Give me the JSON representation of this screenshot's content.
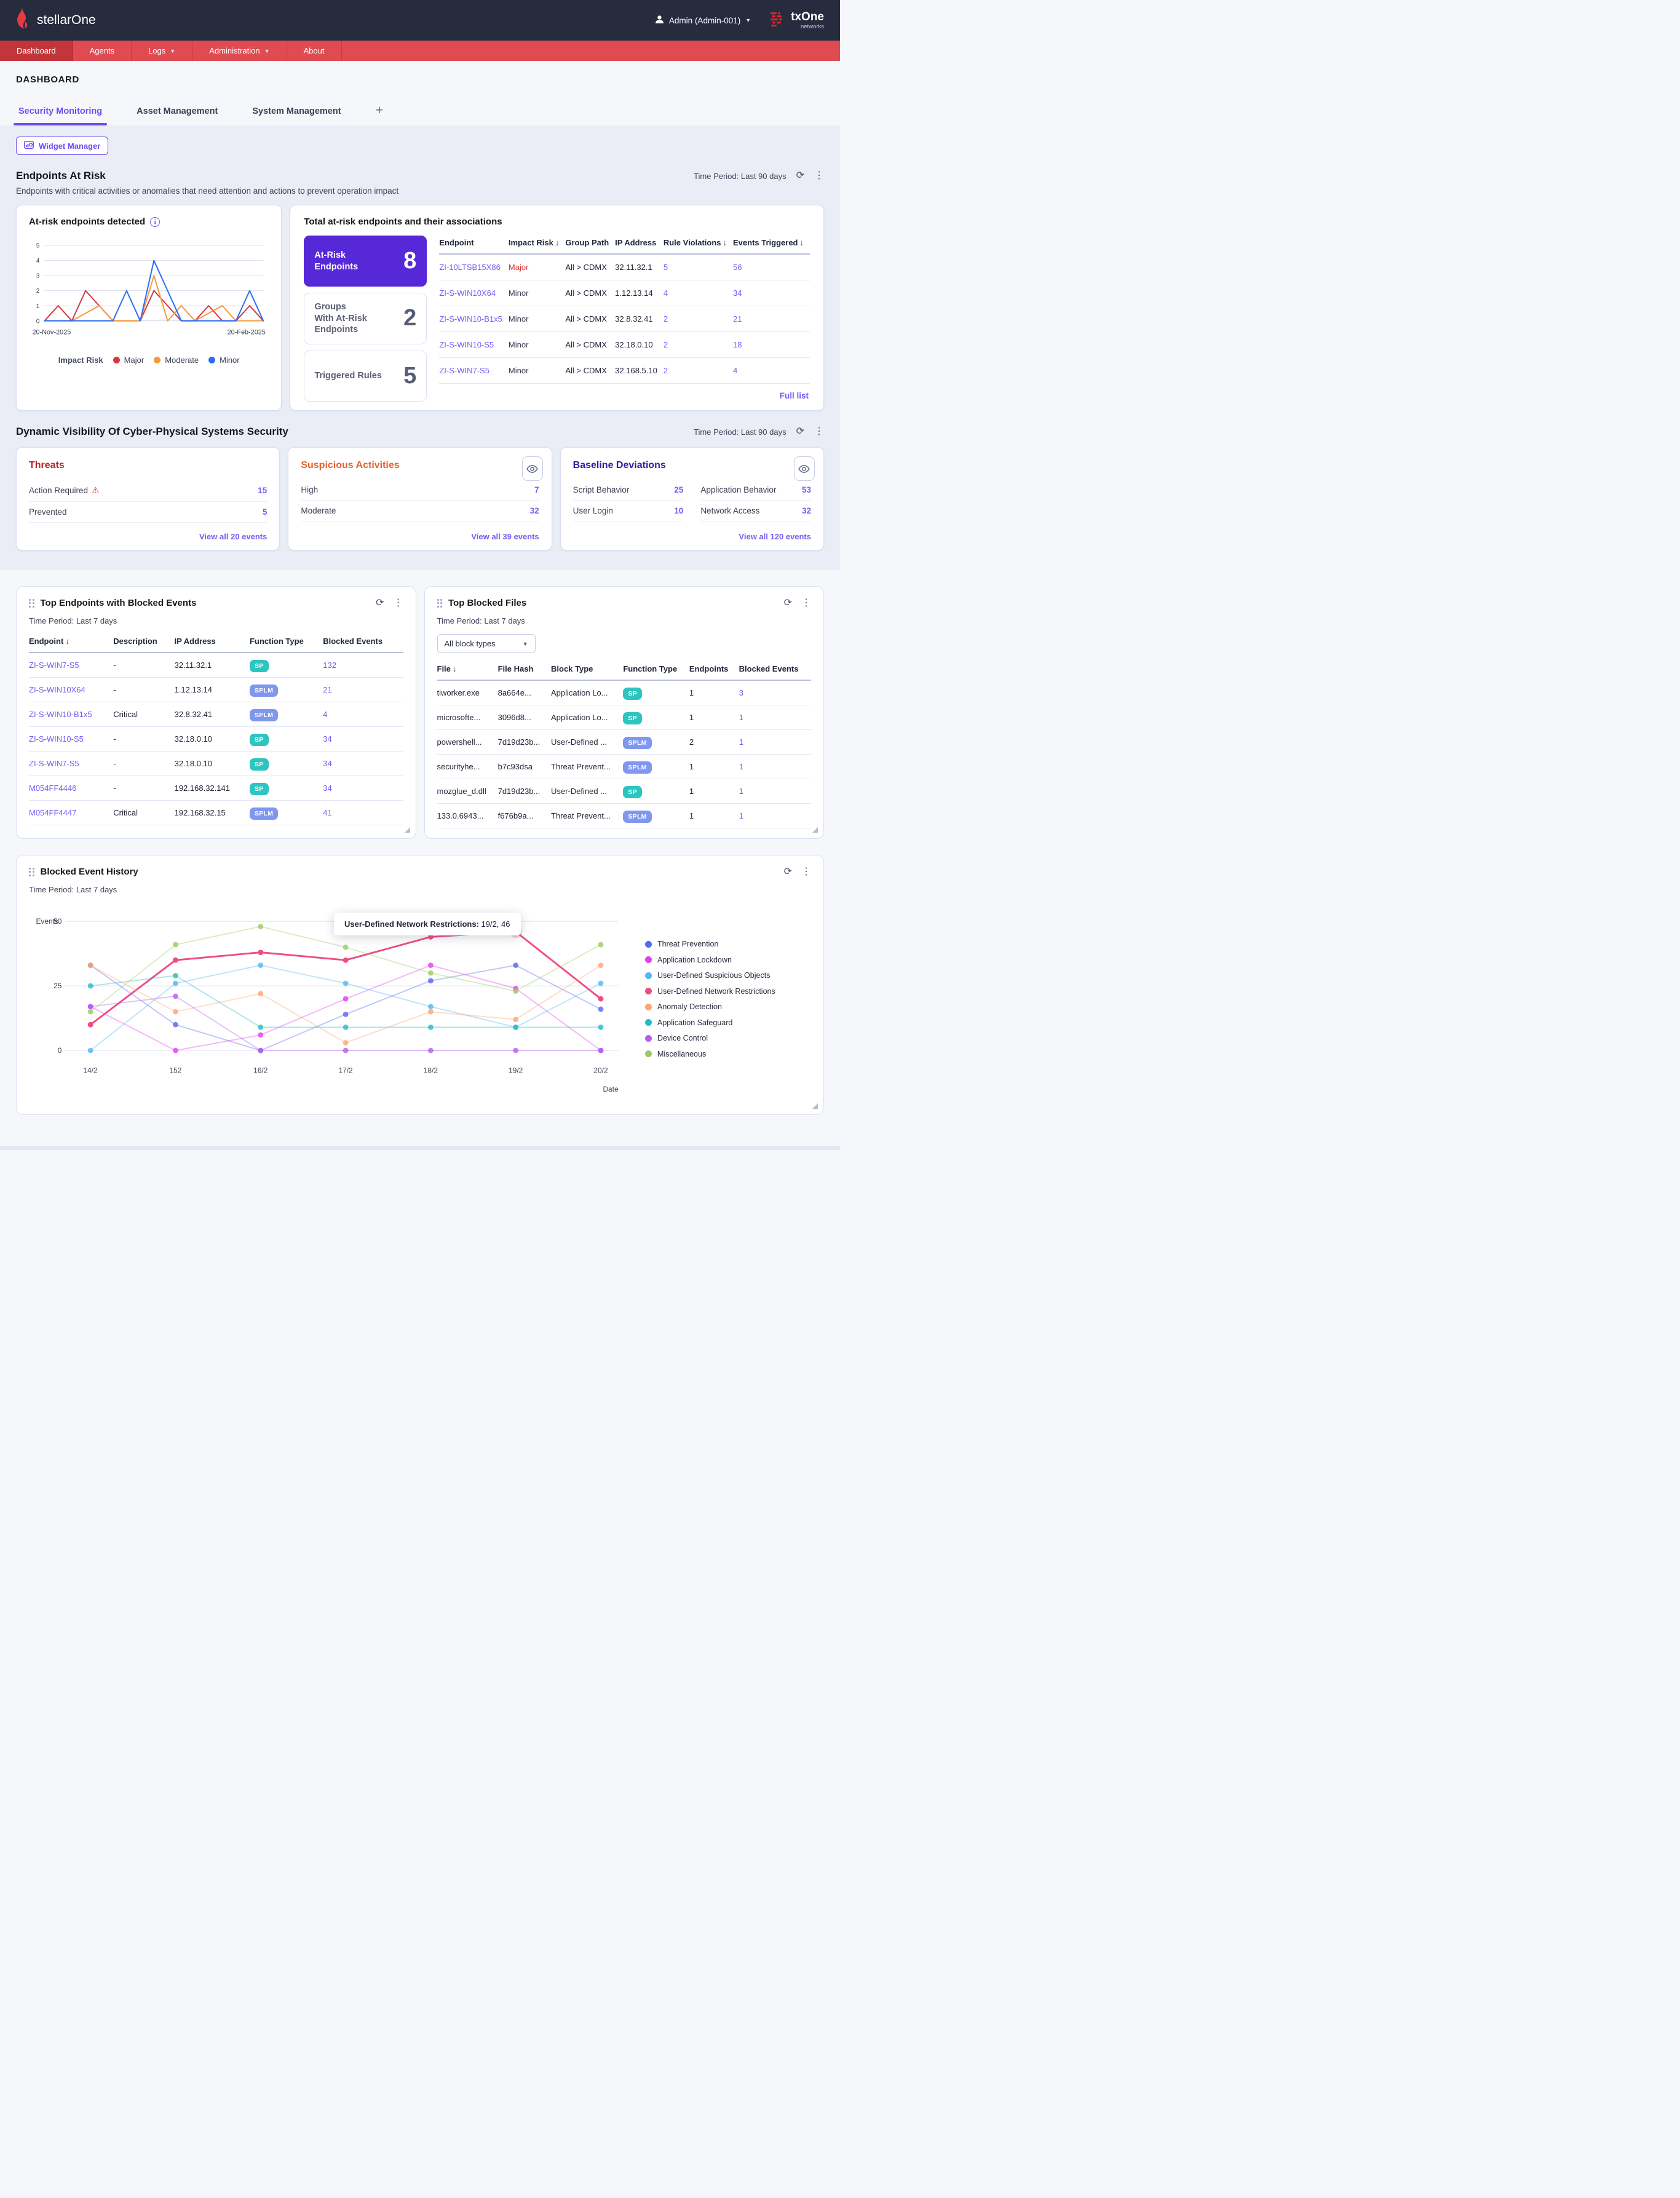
{
  "header": {
    "brand": "stellarOne",
    "user_label": "Admin (Admin-001)",
    "logo_title": "txOne",
    "logo_subtitle": "networks"
  },
  "nav": {
    "items": [
      {
        "label": "Dashboard",
        "active": true,
        "caret": false
      },
      {
        "label": "Agents",
        "active": false,
        "caret": false
      },
      {
        "label": "Logs",
        "active": false,
        "caret": true
      },
      {
        "label": "Administration",
        "active": false,
        "caret": true
      },
      {
        "label": "About",
        "active": false,
        "caret": false
      }
    ]
  },
  "page": {
    "title": "DASHBOARD",
    "tabs": [
      {
        "label": "Security Monitoring",
        "active": true
      },
      {
        "label": "Asset Management",
        "active": false
      },
      {
        "label": "System Management",
        "active": false
      }
    ],
    "add_tab_label": "+",
    "widget_manager_label": "Widget Manager"
  },
  "badge_colors": {
    "SP": "#2cc5c0",
    "SPLM": "#8097f0"
  },
  "sections": {
    "endpoints_at_risk": {
      "title": "Endpoints At Risk",
      "subtitle": "Endpoints with critical activities or anomalies that need attention and actions to prevent operation impact",
      "time_period": "Time Period: Last 90 days",
      "detected_card": {
        "title": "At-risk endpoints detected"
      },
      "associations_card": {
        "title": "Total at-risk endpoints and their associations",
        "stats": [
          {
            "label": "At-Risk\nEndpoints",
            "value": "8",
            "highlight": true
          },
          {
            "label": "Groups\nWith At-Risk\nEndpoints",
            "value": "2",
            "highlight": false
          },
          {
            "label": "Triggered Rules",
            "value": "5",
            "highlight": false
          }
        ],
        "table": {
          "columns": [
            "Endpoint",
            "Impact Risk",
            "Group Path",
            "IP Address",
            "Rule Violations",
            "Events Triggered"
          ],
          "sorted_columns": [
            1,
            4,
            5
          ],
          "rows": [
            [
              "ZI-10LTSB15X86",
              "Major",
              "All > CDMX",
              "32.11.32.1",
              "5",
              "56"
            ],
            [
              "ZI-S-WIN10X64",
              "Minor",
              "All > CDMX",
              "1.12.13.14",
              "4",
              "34"
            ],
            [
              "ZI-S-WIN10-B1x5",
              "Minor",
              "All > CDMX",
              "32.8.32.41",
              "2",
              "21"
            ],
            [
              "ZI-S-WIN10-S5",
              "Minor",
              "All > CDMX",
              "32.18.0.10",
              "2",
              "18"
            ],
            [
              "ZI-S-WIN7-S5",
              "Minor",
              "All > CDMX",
              "32.168.5.10",
              "2",
              "4"
            ]
          ]
        },
        "full_list_label": "Full list"
      }
    },
    "dynamic_visibility": {
      "title": "Dynamic Visibility Of Cyber-Physical Systems Security",
      "time_period": "Time Period: Last 90 days",
      "threats": {
        "title": "Threats",
        "rows": [
          {
            "label": "Action Required",
            "warning": true,
            "value": "15"
          },
          {
            "label": "Prevented",
            "warning": false,
            "value": "5"
          }
        ],
        "view_all": "View all 20 events"
      },
      "suspicious": {
        "title": "Suspicious Activities",
        "rows": [
          {
            "label": "High",
            "value": "7"
          },
          {
            "label": "Moderate",
            "value": "32"
          }
        ],
        "view_all": "View all 39 events"
      },
      "baseline": {
        "title": "Baseline Deviations",
        "rows": [
          {
            "label": "Script Behavior",
            "value": "25"
          },
          {
            "label": "Application Behavior",
            "value": "53"
          },
          {
            "label": "User Login",
            "value": "10"
          },
          {
            "label": "Network Access",
            "value": "32"
          }
        ],
        "view_all": "View all 120 events"
      }
    },
    "top_endpoints": {
      "title": "Top Endpoints with Blocked Events",
      "time_period": "Time Period: Last 7 days",
      "table": {
        "columns": [
          "Endpoint",
          "Description",
          "IP Address",
          "Function Type",
          "Blocked Events"
        ],
        "sorted_columns": [
          0
        ],
        "rows": [
          [
            "ZI-S-WIN7-S5",
            "-",
            "32.11.32.1",
            "SP",
            "132"
          ],
          [
            "ZI-S-WIN10X64",
            "-",
            "1.12.13.14",
            "SPLM",
            "21"
          ],
          [
            "ZI-S-WIN10-B1x5",
            "Critical",
            "32.8.32.41",
            "SPLM",
            "4"
          ],
          [
            "ZI-S-WIN10-S5",
            "-",
            "32.18.0.10",
            "SP",
            "34"
          ],
          [
            "ZI-S-WIN7-S5",
            "-",
            "32.18.0.10",
            "SP",
            "34"
          ],
          [
            "M054FF4446",
            "-",
            "192.168.32.141",
            "SP",
            "34"
          ],
          [
            "M054FF4447",
            "Critical",
            "192.168.32.15",
            "SPLM",
            "41"
          ]
        ]
      }
    },
    "top_blocked_files": {
      "title": "Top Blocked Files",
      "time_period": "Time Period: Last 7 days",
      "filter_value": "All block types",
      "table": {
        "columns": [
          "File",
          "File Hash",
          "Block Type",
          "Function Type",
          "Endpoints",
          "Blocked Events"
        ],
        "sorted_columns": [
          0
        ],
        "rows": [
          [
            "tiworker.exe",
            "8a664e...",
            "Application Lo...",
            "SP",
            "1",
            "3"
          ],
          [
            "microsofte...",
            "3096d8...",
            "Application Lo...",
            "SP",
            "1",
            "1"
          ],
          [
            "powershell...",
            "7d19d23b...",
            "User-Defined ...",
            "SPLM",
            "2",
            "1"
          ],
          [
            "securityhe...",
            "b7c93dsa",
            "Threat Prevent...",
            "SPLM",
            "1",
            "1"
          ],
          [
            "mozglue_d.dll",
            "7d19d23b...",
            "User-Defined ...",
            "SP",
            "1",
            "1"
          ],
          [
            "133.0.6943...",
            "f676b9a...",
            "Threat Prevent...",
            "SPLM",
            "1",
            "1"
          ]
        ]
      }
    },
    "blocked_event_history": {
      "title": "Blocked Event History",
      "time_period": "Time Period: Last 7 days",
      "tooltip": {
        "label": "User-Defined Network Restrictions:",
        "value": " 19/2, 46"
      }
    }
  },
  "chart_data": [
    {
      "id": "at_risk_endpoints_detected",
      "type": "line",
      "title": "At-risk endpoints detected",
      "xlabel": "",
      "ylabel": "",
      "x_start_label": "20-Nov-2025",
      "x_end_label": "20-Feb-2025",
      "ylim": [
        0,
        5
      ],
      "yticks": [
        0,
        1,
        2,
        3,
        4,
        5
      ],
      "grid": true,
      "legend_title": "Impact Risk",
      "legend_position": "bottom",
      "series": [
        {
          "name": "Major",
          "color": "#d7373f",
          "values": [
            0,
            1,
            0,
            2,
            1,
            0,
            0,
            0,
            2,
            1,
            0,
            0,
            1,
            0,
            0,
            1,
            0
          ]
        },
        {
          "name": "Moderate",
          "color": "#f59a3d",
          "values": [
            0,
            0,
            0,
            0.5,
            1,
            0,
            0,
            0,
            3,
            0,
            1,
            0,
            0.5,
            1,
            0,
            0,
            0
          ]
        },
        {
          "name": "Minor",
          "color": "#2a6df4",
          "values": [
            0,
            0,
            0,
            0,
            0,
            0,
            2,
            0,
            4,
            2,
            0,
            0,
            0,
            0,
            0,
            2,
            0
          ]
        }
      ]
    },
    {
      "id": "blocked_event_history",
      "type": "line",
      "title": "Blocked Event History",
      "xlabel": "Date",
      "ylabel": "Events",
      "categories": [
        "14/2",
        "152",
        "16/2",
        "17/2",
        "18/2",
        "19/2",
        "20/2"
      ],
      "ylim": [
        0,
        50
      ],
      "yticks": [
        0,
        25,
        50
      ],
      "grid": true,
      "legend_position": "right",
      "highlight": {
        "series": "User-Defined Network Restrictions",
        "x": "19/2",
        "value": 46
      },
      "series": [
        {
          "name": "Threat Prevention",
          "color": "#5667f0",
          "values": [
            33,
            10,
            0,
            14,
            27,
            33,
            16
          ]
        },
        {
          "name": "Application Lockdown",
          "color": "#e33df0",
          "values": [
            17,
            0,
            6,
            20,
            33,
            24,
            0
          ]
        },
        {
          "name": "User-Defined Suspicious Objects",
          "color": "#4fb8f0",
          "values": [
            0,
            26,
            33,
            26,
            17,
            9,
            26
          ]
        },
        {
          "name": "User-Defined Network Restrictions",
          "color": "#f04b82",
          "values": [
            10,
            35,
            38,
            35,
            44,
            46,
            20
          ]
        },
        {
          "name": "Anomaly Detection",
          "color": "#ffa470",
          "values": [
            33,
            15,
            22,
            3,
            15,
            12,
            33
          ]
        },
        {
          "name": "Application Safeguard",
          "color": "#22bcc9",
          "values": [
            25,
            29,
            9,
            9,
            9,
            9,
            9
          ]
        },
        {
          "name": "Device Control",
          "color": "#b35ef2",
          "values": [
            17,
            21,
            0,
            0,
            0,
            0,
            0
          ]
        },
        {
          "name": "Miscellaneous",
          "color": "#9ccb5e",
          "values": [
            15,
            41,
            48,
            40,
            30,
            23,
            41
          ]
        }
      ]
    }
  ]
}
